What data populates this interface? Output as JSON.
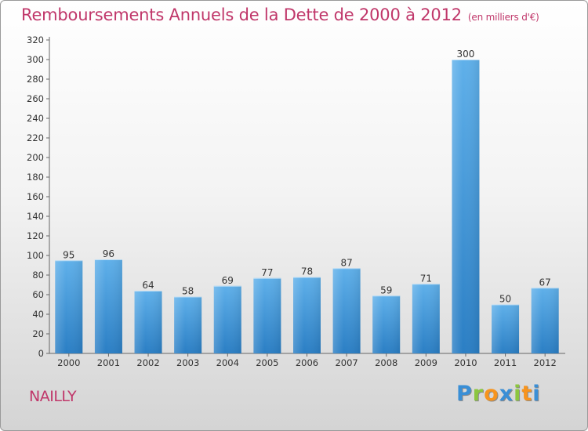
{
  "header": {
    "title": "Remboursements Annuels de la Dette de 2000 à 2012",
    "subtitle": "(en milliers d'€)"
  },
  "commune": "NAILLY",
  "logo": {
    "letters": [
      {
        "ch": "P",
        "color": "#3a8fd6"
      },
      {
        "ch": "r",
        "color": "#8cc63f"
      },
      {
        "ch": "o",
        "color": "#f7941d"
      },
      {
        "ch": "x",
        "color": "#3a8fd6"
      },
      {
        "ch": "i",
        "color": "#8cc63f"
      },
      {
        "ch": "t",
        "color": "#f7941d"
      },
      {
        "ch": "i",
        "color": "#3a8fd6"
      }
    ]
  },
  "chart_data": {
    "type": "bar",
    "categories": [
      "2000",
      "2001",
      "2002",
      "2003",
      "2004",
      "2005",
      "2006",
      "2007",
      "2008",
      "2009",
      "2010",
      "2011",
      "2012"
    ],
    "values": [
      95,
      96,
      64,
      58,
      69,
      77,
      78,
      87,
      59,
      71,
      300,
      50,
      67
    ],
    "ylim": [
      0,
      320
    ],
    "ytick_step": 20,
    "grid": false,
    "bar_color": "#4d9fdf",
    "title": "Remboursements Annuels de la Dette de 2000 à 2012"
  }
}
